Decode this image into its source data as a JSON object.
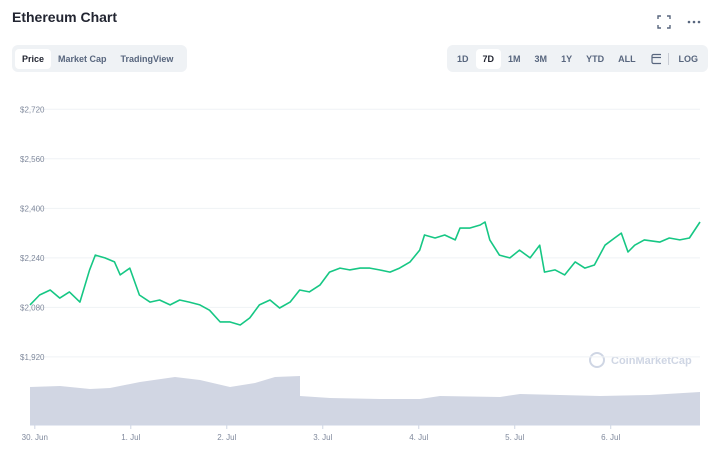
{
  "header": {
    "title": "Ethereum Chart"
  },
  "tabs": [
    "Price",
    "Market Cap",
    "TradingView"
  ],
  "ranges": [
    "1D",
    "7D",
    "1M",
    "3M",
    "1Y",
    "YTD",
    "ALL"
  ],
  "scale_button": "LOG",
  "watermark": "CoinMarketCap",
  "chart_data": {
    "type": "line",
    "color": "#16c784",
    "grid": true,
    "x": [
      -0.05,
      0.05,
      0.16,
      0.26,
      0.36,
      0.47,
      0.57,
      0.63,
      0.73,
      0.83,
      0.89,
      0.99,
      1.09,
      1.2,
      1.3,
      1.41,
      1.51,
      1.61,
      1.72,
      1.82,
      1.93,
      2.03,
      2.14,
      2.24,
      2.34,
      2.45,
      2.55,
      2.66,
      2.76,
      2.86,
      2.97,
      3.07,
      3.18,
      3.28,
      3.39,
      3.49,
      3.59,
      3.7,
      3.8,
      3.91,
      4.01,
      4.06,
      4.17,
      4.27,
      4.38,
      4.43,
      4.53,
      4.64,
      4.69,
      4.74,
      4.84,
      4.95,
      5.05,
      5.16,
      5.26,
      5.31,
      5.42,
      5.52,
      5.63,
      5.73,
      5.83,
      5.94,
      6.04,
      6.11,
      6.18,
      6.25,
      6.35,
      6.51,
      6.61,
      6.72,
      6.82,
      6.93
    ],
    "values": [
      2088,
      2120,
      2136,
      2110,
      2130,
      2097,
      2200,
      2249,
      2240,
      2227,
      2185,
      2207,
      2120,
      2097,
      2104,
      2088,
      2104,
      2097,
      2088,
      2071,
      2033,
      2033,
      2023,
      2046,
      2088,
      2104,
      2078,
      2097,
      2136,
      2130,
      2152,
      2194,
      2207,
      2201,
      2207,
      2207,
      2201,
      2194,
      2207,
      2227,
      2265,
      2314,
      2304,
      2314,
      2298,
      2336,
      2336,
      2346,
      2356,
      2298,
      2249,
      2240,
      2265,
      2240,
      2281,
      2194,
      2201,
      2185,
      2227,
      2207,
      2217,
      2281,
      2304,
      2320,
      2259,
      2281,
      2298,
      2291,
      2304,
      2298,
      2304,
      2356
    ],
    "xlim": [
      -0.05,
      6.93
    ],
    "xticks": [
      {
        "value": 0,
        "label": "30. Jun"
      },
      {
        "value": 1,
        "label": "1. Jul"
      },
      {
        "value": 2,
        "label": "2. Jul"
      },
      {
        "value": 3,
        "label": "3. Jul"
      },
      {
        "value": 4,
        "label": "4. Jul"
      },
      {
        "value": 5,
        "label": "5. Jul"
      },
      {
        "value": 6,
        "label": "6. Jul"
      }
    ],
    "ylim": [
      1700,
      2750
    ],
    "yticks": [
      {
        "value": 1920,
        "label": "$1,920"
      },
      {
        "value": 2080,
        "label": "$2,080"
      },
      {
        "value": 2240,
        "label": "$2,240"
      },
      {
        "value": 2400,
        "label": "$2,400"
      },
      {
        "value": 2560,
        "label": "$2,560"
      },
      {
        "value": 2720,
        "label": "$2,720"
      }
    ]
  }
}
